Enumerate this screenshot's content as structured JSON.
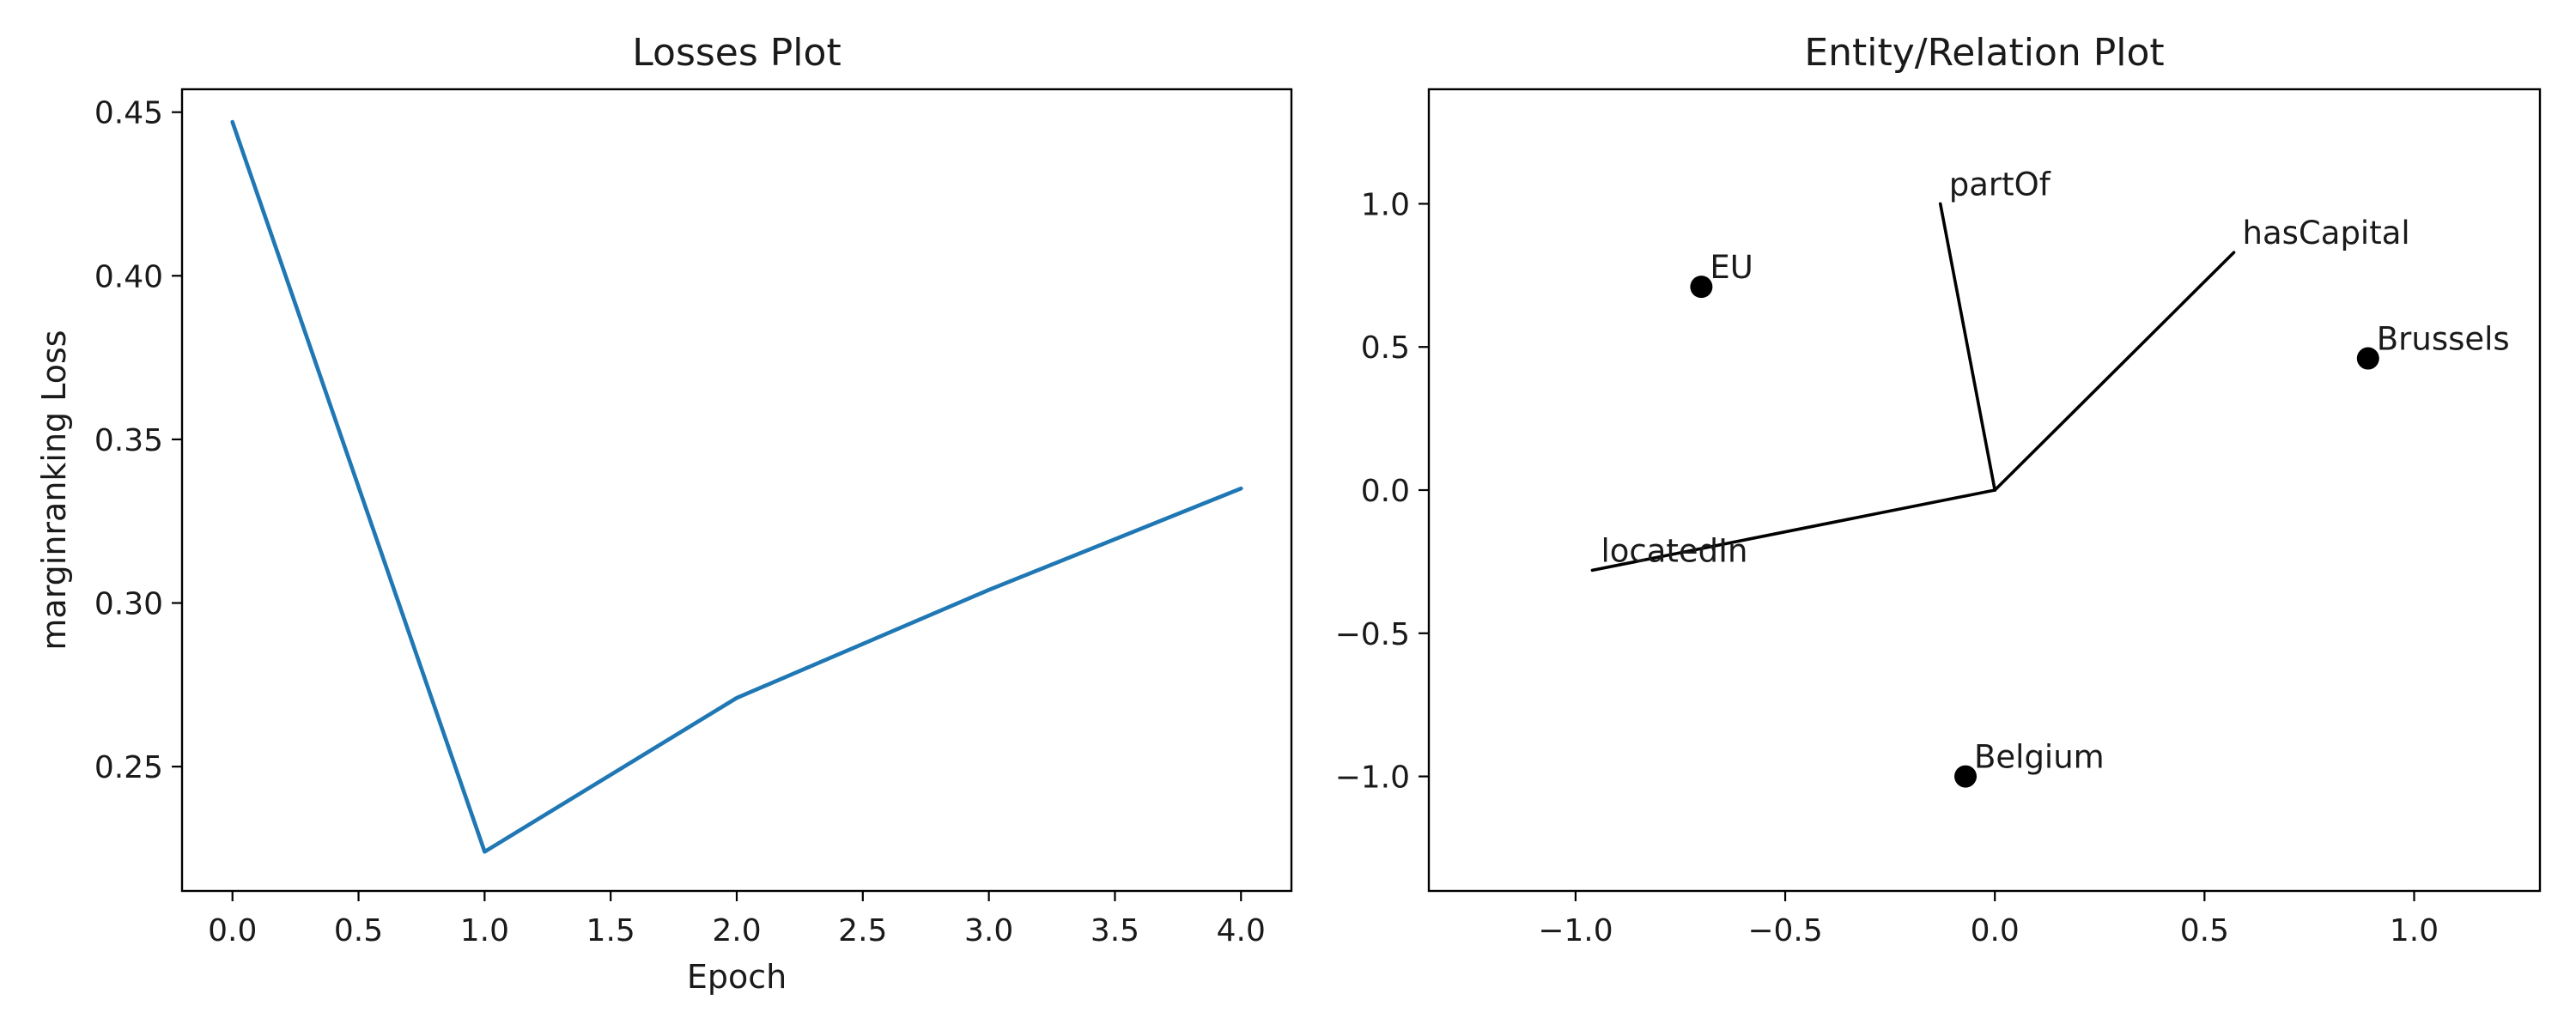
{
  "chart_data": [
    {
      "type": "line",
      "title": "Losses Plot",
      "xlabel": "Epoch",
      "ylabel": "marginranking Loss",
      "xlim": [
        -0.2,
        4.2
      ],
      "ylim": [
        0.212,
        0.457
      ],
      "grid": false,
      "xticks": [
        0.0,
        0.5,
        1.0,
        1.5,
        2.0,
        2.5,
        3.0,
        3.5,
        4.0
      ],
      "xtick_labels": [
        "0.0",
        "0.5",
        "1.0",
        "1.5",
        "2.0",
        "2.5",
        "3.0",
        "3.5",
        "4.0"
      ],
      "yticks": [
        0.25,
        0.3,
        0.35,
        0.4,
        0.45
      ],
      "ytick_labels": [
        "0.25",
        "0.30",
        "0.35",
        "0.40",
        "0.45"
      ],
      "line_color": "#1f77b4",
      "series": [
        {
          "x": [
            0,
            1,
            2,
            3,
            4
          ],
          "values": [
            0.447,
            0.224,
            0.271,
            0.304,
            0.335
          ]
        }
      ]
    },
    {
      "type": "scatter",
      "title": "Entity/Relation Plot",
      "xlabel": "",
      "ylabel": "",
      "xlim": [
        -1.35,
        1.3
      ],
      "ylim": [
        -1.4,
        1.4
      ],
      "grid": false,
      "xticks": [
        -1.0,
        -0.5,
        0.0,
        0.5,
        1.0
      ],
      "xtick_labels": [
        "−1.0",
        "−0.5",
        "0.0",
        "0.5",
        "1.0"
      ],
      "yticks": [
        -1.0,
        -0.5,
        0.0,
        0.5,
        1.0
      ],
      "ytick_labels": [
        "−1.0",
        "−0.5",
        "0.0",
        "0.5",
        "1.0"
      ],
      "point_color": "#000000",
      "entities": [
        {
          "name": "EU",
          "x": -0.7,
          "y": 0.71
        },
        {
          "name": "Brussels",
          "x": 0.89,
          "y": 0.46
        },
        {
          "name": "Belgium",
          "x": -0.07,
          "y": -1.0
        }
      ],
      "relations": [
        {
          "name": "partOf",
          "x": -0.13,
          "y": 1.0
        },
        {
          "name": "hasCapital",
          "x": 0.57,
          "y": 0.83
        },
        {
          "name": "locatedIn",
          "x": -0.96,
          "y": -0.28
        }
      ]
    }
  ]
}
